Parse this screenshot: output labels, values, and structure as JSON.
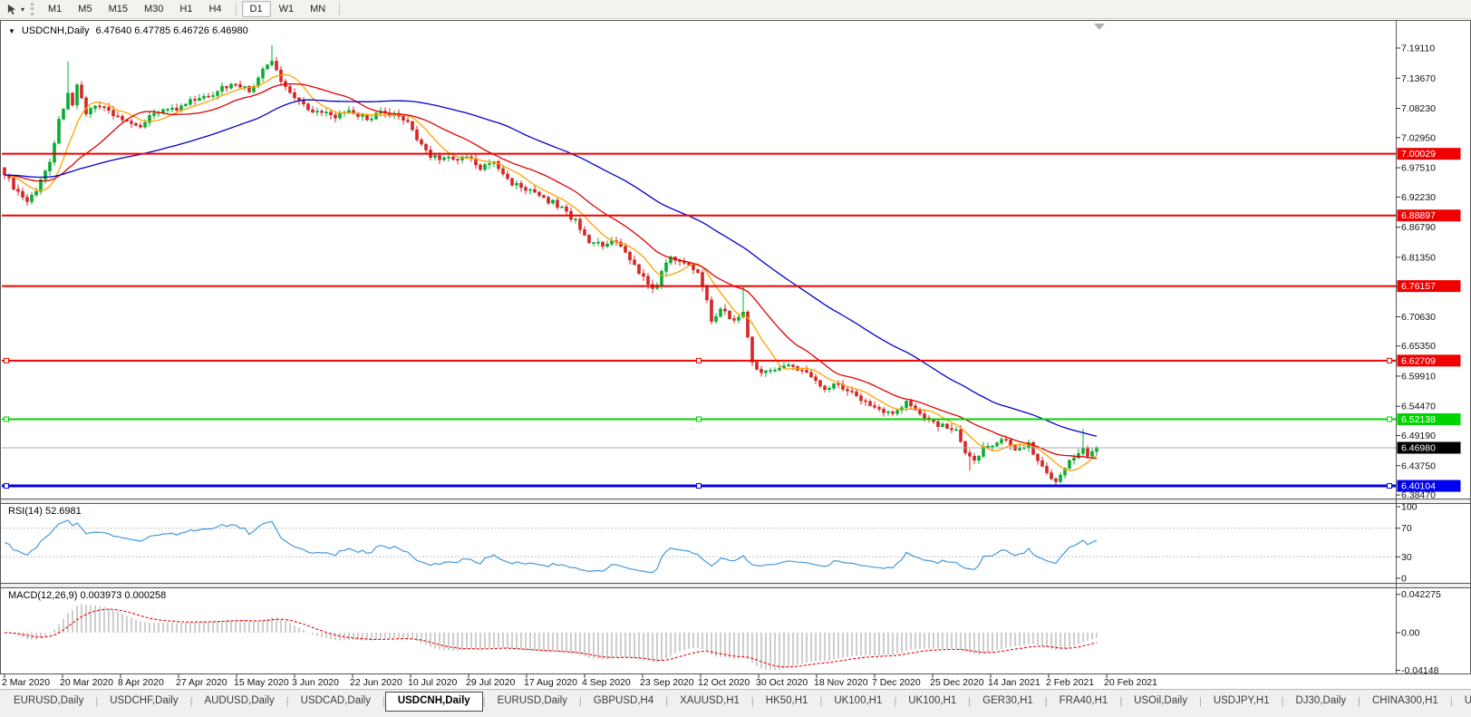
{
  "icons": {
    "collapse": "▼",
    "cursor_dropdown": "▾",
    "tab_scroll_left": "◂",
    "tab_scroll_right": "▸"
  },
  "toolbar": {
    "groups": [
      [
        "M1",
        "M5",
        "M15",
        "M30",
        "H1",
        "H4"
      ],
      [
        "D1",
        "W1",
        "MN"
      ]
    ],
    "active": "D1"
  },
  "chart": {
    "title": "USDCNH,Daily",
    "ohlc": "6.47640 6.47785 6.46726 6.46980"
  },
  "indicators": {
    "rsi_label": "RSI(14) 52.6981",
    "macd_label": "MACD(12,26,9) 0.003973 0.000258"
  },
  "chart_data": {
    "type": "candlestick",
    "symbol": "USDCNH",
    "timeframe": "Daily",
    "ohlc_display": {
      "open": "6.47640",
      "high": "6.47785",
      "low": "6.46726",
      "close": "6.46980"
    },
    "price_axis_ticks": [
      "7.19110",
      "7.13670",
      "7.08230",
      "7.02950",
      "6.97510",
      "6.92230",
      "6.86790",
      "6.81350",
      "6.76060",
      "6.70630",
      "6.65350",
      "6.59910",
      "6.54470",
      "6.49190",
      "6.43750",
      "6.38470"
    ],
    "x_axis_dates": [
      "2 Mar 2020",
      "20 Mar 2020",
      "8 Apr 2020",
      "27 Apr 2020",
      "15 May 2020",
      "3 Jun 2020",
      "22 Jun 2020",
      "10 Jul 2020",
      "29 Jul 2020",
      "17 Aug 2020",
      "4 Sep 2020",
      "23 Sep 2020",
      "12 Oct 2020",
      "30 Oct 2020",
      "18 Nov 2020",
      "7 Dec 2020",
      "25 Dec 2020",
      "14 Jan 2021",
      "2 Feb 2021",
      "20 Feb 2021"
    ],
    "ylim_main": [
      6.3798,
      7.2353
    ],
    "candles": {
      "count": 242,
      "noise": 0.007,
      "close_anchors": [
        [
          0,
          6.965
        ],
        [
          3,
          6.93
        ],
        [
          5,
          6.91
        ],
        [
          8,
          6.952
        ],
        [
          10,
          6.988
        ],
        [
          12,
          7.058
        ],
        [
          14,
          7.112
        ],
        [
          15,
          7.085
        ],
        [
          16,
          7.122
        ],
        [
          18,
          7.068
        ],
        [
          20,
          7.092
        ],
        [
          23,
          7.078
        ],
        [
          26,
          7.062
        ],
        [
          29,
          7.048
        ],
        [
          32,
          7.068
        ],
        [
          35,
          7.084
        ],
        [
          38,
          7.08
        ],
        [
          41,
          7.094
        ],
        [
          44,
          7.102
        ],
        [
          47,
          7.116
        ],
        [
          51,
          7.128
        ],
        [
          54,
          7.112
        ],
        [
          57,
          7.15
        ],
        [
          59,
          7.168
        ],
        [
          61,
          7.132
        ],
        [
          64,
          7.103
        ],
        [
          67,
          7.083
        ],
        [
          70,
          7.073
        ],
        [
          73,
          7.068
        ],
        [
          77,
          7.074
        ],
        [
          80,
          7.063
        ],
        [
          83,
          7.073
        ],
        [
          86,
          7.068
        ],
        [
          89,
          7.06
        ],
        [
          91,
          7.026
        ],
        [
          94,
          6.998
        ],
        [
          97,
          6.993
        ],
        [
          100,
          6.988
        ],
        [
          102,
          6.996
        ],
        [
          105,
          6.973
        ],
        [
          108,
          6.986
        ],
        [
          111,
          6.953
        ],
        [
          114,
          6.942
        ],
        [
          118,
          6.924
        ],
        [
          121,
          6.912
        ],
        [
          124,
          6.897
        ],
        [
          127,
          6.868
        ],
        [
          129,
          6.842
        ],
        [
          132,
          6.832
        ],
        [
          135,
          6.841
        ],
        [
          138,
          6.812
        ],
        [
          141,
          6.775
        ],
        [
          143,
          6.752
        ],
        [
          145,
          6.786
        ],
        [
          147,
          6.816
        ],
        [
          150,
          6.803
        ],
        [
          153,
          6.788
        ],
        [
          155,
          6.74
        ],
        [
          156,
          6.695
        ],
        [
          158,
          6.722
        ],
        [
          161,
          6.7
        ],
        [
          163,
          6.712
        ],
        [
          165,
          6.628
        ],
        [
          167,
          6.603
        ],
        [
          169,
          6.612
        ],
        [
          172,
          6.618
        ],
        [
          175,
          6.612
        ],
        [
          178,
          6.598
        ],
        [
          181,
          6.578
        ],
        [
          184,
          6.585
        ],
        [
          187,
          6.568
        ],
        [
          190,
          6.552
        ],
        [
          193,
          6.54
        ],
        [
          196,
          6.53
        ],
        [
          199,
          6.55
        ],
        [
          202,
          6.535
        ],
        [
          205,
          6.515
        ],
        [
          208,
          6.508
        ],
        [
          210,
          6.498
        ],
        [
          212,
          6.458
        ],
        [
          214,
          6.445
        ],
        [
          216,
          6.47
        ],
        [
          218,
          6.478
        ],
        [
          221,
          6.483
        ],
        [
          223,
          6.466
        ],
        [
          226,
          6.478
        ],
        [
          228,
          6.448
        ],
        [
          230,
          6.425
        ],
        [
          232,
          6.41
        ],
        [
          234,
          6.433
        ],
        [
          236,
          6.456
        ],
        [
          238,
          6.468
        ],
        [
          239,
          6.458
        ],
        [
          241,
          6.4698
        ]
      ],
      "spikes": [
        {
          "i": 14,
          "h": 7.167
        },
        {
          "i": 59,
          "h": 7.1965
        },
        {
          "i": 163,
          "h": 6.7605
        },
        {
          "i": 213,
          "l": 6.428
        },
        {
          "i": 232,
          "l": 6.4005
        },
        {
          "i": 238,
          "h": 6.5045
        }
      ]
    },
    "moving_averages": [
      {
        "name": "ma-fast",
        "window": 8,
        "color": "#ffa200"
      },
      {
        "name": "ma-mid",
        "window": 20,
        "color": "#e00000"
      },
      {
        "name": "ma-slow",
        "window": 55,
        "color": "#0000cc"
      }
    ],
    "hlines": [
      {
        "price": 7.00029,
        "label": "7.00029",
        "color": "#f00000",
        "width": 2,
        "handles": false
      },
      {
        "price": 6.88897,
        "label": "6.88897",
        "color": "#f00000",
        "width": 2,
        "handles": false
      },
      {
        "price": 6.76157,
        "label": "6.76157",
        "color": "#f00000",
        "width": 2,
        "handles": false
      },
      {
        "price": 6.62709,
        "label": "6.62709",
        "color": "#f00000",
        "width": 2,
        "handles": true
      },
      {
        "price": 6.52138,
        "label": "6.52138",
        "color": "#00d400",
        "width": 2,
        "handles": true
      },
      {
        "price": 6.40104,
        "label": "6.40104",
        "color": "#0000f0",
        "width": 3,
        "handles": true
      }
    ],
    "current_price": {
      "value": 6.4698,
      "label": "6.46980"
    },
    "rsi": {
      "label": "RSI(14) 52.6981",
      "period": 14,
      "value": 52.6981,
      "scale": [
        "100",
        "70",
        "30",
        "0"
      ],
      "levels": [
        70,
        30
      ],
      "color": "#4499dd",
      "ylim": [
        0,
        100
      ]
    },
    "macd": {
      "label": "MACD(12,26,9) 0.003973 0.000258",
      "fast": 12,
      "slow": 26,
      "signal": 9,
      "values": [
        0.003973,
        0.000258
      ],
      "scale": [
        "0.042275",
        "0.00",
        "-0.04148"
      ],
      "hist_color": "#b8b8b8",
      "signal_color": "#f00000"
    },
    "colors": {
      "up": "#00b32d",
      "up_border": "#009422",
      "down": "#e02525",
      "down_border": "#b01515",
      "bid_line": "#a8a8a8",
      "level_dash": "#c0c0c0"
    }
  },
  "tabs": {
    "items": [
      "EURUSD,Daily",
      "USDCHF,Daily",
      "AUDUSD,Daily",
      "USDCAD,Daily",
      "USDCNH,Daily",
      "EURUSD,Daily",
      "GBPUSD,H4",
      "XAUUSD,H1",
      "HK50,H1",
      "UK100,H1",
      "UK100,H1",
      "GER30,H1",
      "FRA40,H1",
      "USOil,Daily",
      "USDJPY,H1",
      "DJ30,Daily",
      "CHINA300,H1",
      "USOil,"
    ],
    "active_index": 4
  }
}
